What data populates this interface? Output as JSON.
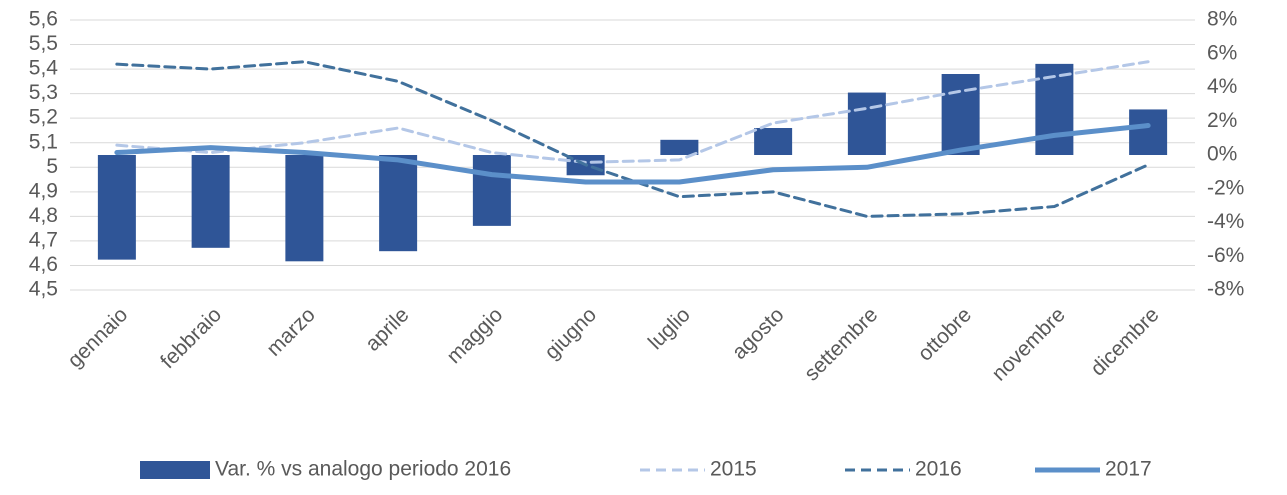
{
  "chart_data": {
    "type": "bar-line",
    "categories": [
      "gennaio",
      "febbraio",
      "marzo",
      "aprile",
      "maggio",
      "giugno",
      "luglio",
      "agosto",
      "settembre",
      "ottobre",
      "novembre",
      "dicembre"
    ],
    "series": [
      {
        "name": "Var. % vs analogo periodo 2016",
        "type": "bar",
        "axis": "y2",
        "color": "#2f5597",
        "values": [
          -6.2,
          -5.5,
          -6.3,
          -5.7,
          -4.2,
          -1.2,
          0.9,
          1.6,
          3.7,
          4.8,
          5.4,
          2.7
        ]
      },
      {
        "name": "2015",
        "type": "line",
        "dash": true,
        "color": "#b4c7e7",
        "values": [
          5.09,
          5.06,
          5.1,
          5.16,
          5.06,
          5.02,
          5.03,
          5.18,
          5.24,
          5.31,
          5.37,
          5.43
        ]
      },
      {
        "name": "2016",
        "type": "line",
        "dash": true,
        "color": "#41719c",
        "values": [
          5.42,
          5.4,
          5.43,
          5.35,
          5.19,
          5.01,
          4.88,
          4.9,
          4.8,
          4.81,
          4.84,
          5.01
        ]
      },
      {
        "name": "2017",
        "type": "line",
        "dash": false,
        "color": "#5b8fc9",
        "values": [
          5.06,
          5.08,
          5.06,
          5.03,
          4.97,
          4.94,
          4.94,
          4.99,
          5.0,
          5.07,
          5.13,
          5.17
        ]
      }
    ],
    "ylim": [
      4.5,
      5.6
    ],
    "yticks": [
      {
        "value": 4.5,
        "label": "4,5"
      },
      {
        "value": 4.6,
        "label": "4,6"
      },
      {
        "value": 4.7,
        "label": "4,7"
      },
      {
        "value": 4.8,
        "label": "4,8"
      },
      {
        "value": 4.9,
        "label": "4,9"
      },
      5,
      {
        "value": 5.1,
        "label": "5,1"
      },
      {
        "value": 5.2,
        "label": "5,2"
      },
      {
        "value": 5.3,
        "label": "5,3"
      },
      {
        "value": 5.4,
        "label": "5,4"
      },
      {
        "value": 5.5,
        "label": "5,5"
      },
      {
        "value": 5.6,
        "label": "5,6"
      }
    ],
    "y2lim": [
      -8,
      8
    ],
    "y2ticks": [
      {
        "value": -8,
        "label": "-8%"
      },
      {
        "value": -6,
        "label": "-6%"
      },
      {
        "value": -4,
        "label": "-4%"
      },
      {
        "value": -2,
        "label": "-2%"
      },
      {
        "value": 0,
        "label": "0%"
      },
      {
        "value": 2,
        "label": "2%"
      },
      {
        "value": 4,
        "label": "4%"
      },
      {
        "value": 6,
        "label": "6%"
      },
      {
        "value": 8,
        "label": "8%"
      }
    ],
    "grid": true
  }
}
